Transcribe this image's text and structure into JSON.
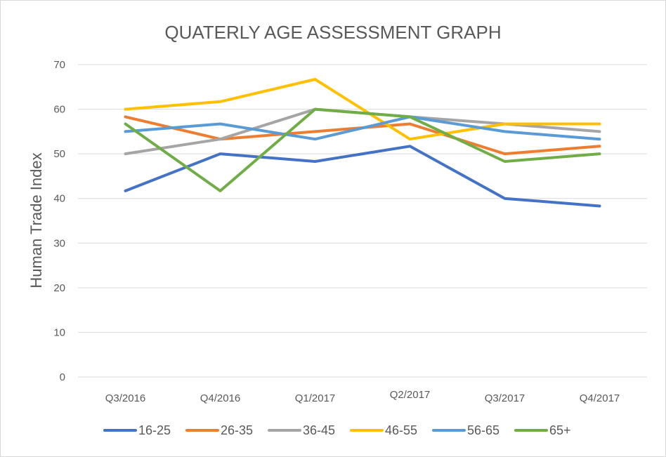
{
  "chart_data": {
    "type": "line",
    "title": "QUATERLY AGE ASSESSMENT GRAPH",
    "ylabel": "Human Trade Index",
    "xlabel": "",
    "ylim": [
      0,
      70
    ],
    "yticks": [
      "0",
      "10",
      "20",
      "30",
      "40",
      "50",
      "60",
      "70"
    ],
    "categories": [
      "Q3/2016",
      "Q4/2016",
      "Q1/2017",
      "Q2/2017",
      "Q3/2017",
      "Q4/2017"
    ],
    "grid": true,
    "legend_position": "bottom",
    "series": [
      {
        "name": "16-25",
        "color": "#4472C4",
        "values": [
          41.7,
          50,
          48.3,
          51.7,
          40,
          38.3
        ]
      },
      {
        "name": "26-35",
        "color": "#ED7D31",
        "values": [
          58.3,
          53.3,
          55,
          56.7,
          50,
          51.7
        ]
      },
      {
        "name": "36-45",
        "color": "#A5A5A5",
        "values": [
          50,
          53.3,
          60,
          58.3,
          56.7,
          55
        ]
      },
      {
        "name": "46-55",
        "color": "#FFC000",
        "values": [
          60,
          61.7,
          66.7,
          53.3,
          56.7,
          56.7
        ]
      },
      {
        "name": "56-65",
        "color": "#5B9BD5",
        "values": [
          55,
          56.7,
          53.3,
          58.3,
          55,
          53.3
        ]
      },
      {
        "name": "65+",
        "color": "#70AD47",
        "values": [
          56.7,
          41.7,
          60,
          58.3,
          48.3,
          50
        ]
      }
    ]
  }
}
